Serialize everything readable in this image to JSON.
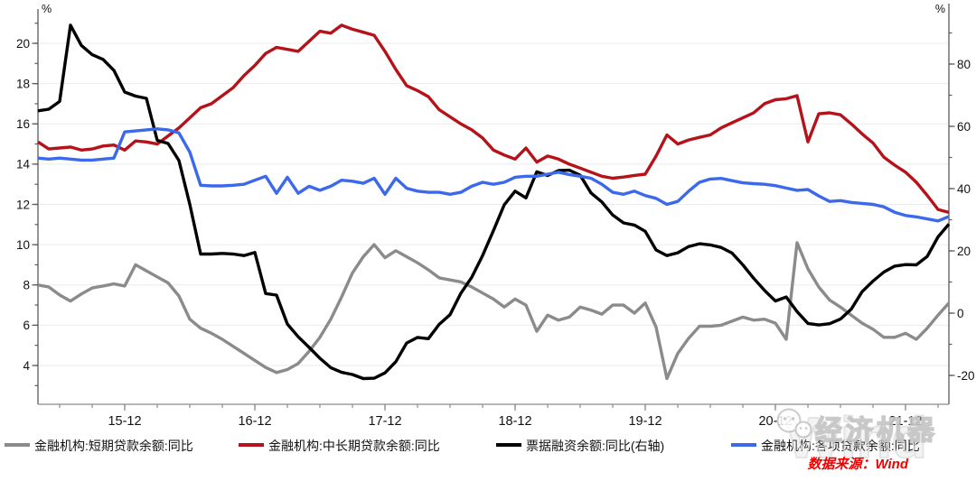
{
  "page": {
    "background": "#ffffff"
  },
  "chart_data": {
    "type": "line",
    "title": "",
    "grid": "horizontal",
    "legend_position": "bottom",
    "x_unit": "month",
    "x": [
      "15-04",
      "15-05",
      "15-06",
      "15-07",
      "15-08",
      "15-09",
      "15-10",
      "15-11",
      "15-12",
      "16-01",
      "16-02",
      "16-03",
      "16-04",
      "16-05",
      "16-06",
      "16-07",
      "16-08",
      "16-09",
      "16-10",
      "16-11",
      "16-12",
      "17-01",
      "17-02",
      "17-03",
      "17-04",
      "17-05",
      "17-06",
      "17-07",
      "17-08",
      "17-09",
      "17-10",
      "17-11",
      "17-12",
      "18-01",
      "18-02",
      "18-03",
      "18-04",
      "18-05",
      "18-06",
      "18-07",
      "18-08",
      "18-09",
      "18-10",
      "18-11",
      "18-12",
      "19-01",
      "19-02",
      "19-03",
      "19-04",
      "19-05",
      "19-06",
      "19-07",
      "19-08",
      "19-09",
      "19-10",
      "19-11",
      "19-12",
      "20-01",
      "20-02",
      "20-03",
      "20-04",
      "20-05",
      "20-06",
      "20-07",
      "20-08",
      "20-09",
      "20-10",
      "20-11",
      "20-12",
      "21-01",
      "21-02",
      "21-03",
      "21-04",
      "21-05",
      "21-06",
      "21-07",
      "21-08",
      "21-09",
      "21-10",
      "21-11",
      "21-12",
      "22-01",
      "22-02",
      "22-03",
      "22-04"
    ],
    "x_axis": {
      "tick_labels": [
        "15-12",
        "16-12",
        "17-12",
        "18-12",
        "19-12",
        "20-12",
        "21-12"
      ]
    },
    "left_axis": {
      "unit": "%",
      "ticks": [
        20,
        18,
        16,
        14,
        12,
        10,
        8,
        6,
        4
      ],
      "minor_step": 1
    },
    "right_axis": {
      "unit": "%",
      "ticks": [
        80,
        60,
        40,
        20,
        0,
        -20
      ],
      "minor_step": 10
    },
    "series": [
      {
        "name": "金融机构:短期贷款余额:同比",
        "axis": "left",
        "color": "#8b8b8b",
        "values": [
          8.0,
          7.9,
          7.5,
          7.2,
          7.55,
          7.85,
          7.95,
          8.05,
          7.95,
          9.0,
          8.7,
          8.4,
          8.1,
          7.45,
          6.3,
          5.85,
          5.6,
          5.3,
          4.95,
          4.6,
          4.25,
          3.9,
          3.65,
          3.8,
          4.1,
          4.7,
          5.4,
          6.3,
          7.4,
          8.6,
          9.4,
          10.0,
          9.35,
          9.7,
          9.4,
          9.1,
          8.75,
          8.35,
          8.25,
          8.15,
          7.9,
          7.6,
          7.3,
          6.9,
          7.3,
          7.0,
          5.7,
          6.5,
          6.25,
          6.4,
          6.9,
          6.75,
          6.55,
          7.0,
          7.0,
          6.6,
          7.1,
          5.9,
          3.35,
          4.6,
          5.35,
          5.95,
          5.95,
          6.0,
          6.2,
          6.4,
          6.25,
          6.3,
          6.1,
          5.3,
          10.1,
          8.8,
          7.9,
          7.25,
          6.9,
          6.5,
          6.1,
          5.8,
          5.4,
          5.4,
          5.6,
          5.3,
          5.85,
          6.5,
          7.1
        ]
      },
      {
        "name": "金融机构:中长期贷款余额:同比",
        "axis": "left",
        "color": "#b5121a",
        "values": [
          15.1,
          14.75,
          14.8,
          14.85,
          14.7,
          14.75,
          14.9,
          14.95,
          14.7,
          15.15,
          15.1,
          15.0,
          15.4,
          15.8,
          16.3,
          16.8,
          17.0,
          17.4,
          17.8,
          18.4,
          18.9,
          19.5,
          19.8,
          19.7,
          19.6,
          20.1,
          20.6,
          20.5,
          20.9,
          20.7,
          20.55,
          20.4,
          19.6,
          18.7,
          17.9,
          17.65,
          17.35,
          16.7,
          16.35,
          16.0,
          15.7,
          15.3,
          14.7,
          14.45,
          14.25,
          14.8,
          14.1,
          14.4,
          14.25,
          14.0,
          13.8,
          13.6,
          13.4,
          13.3,
          13.36,
          13.44,
          13.5,
          14.4,
          15.45,
          15.0,
          15.2,
          15.33,
          15.45,
          15.8,
          16.05,
          16.3,
          16.55,
          17.0,
          17.2,
          17.25,
          17.4,
          15.1,
          16.5,
          16.55,
          16.45,
          16.0,
          15.5,
          15.05,
          14.35,
          13.95,
          13.6,
          13.1,
          12.45,
          11.75,
          11.6
        ]
      },
      {
        "name": "票据融资余额:同比(右轴)",
        "axis": "right",
        "color": "#000000",
        "values": [
          65,
          65.5,
          68,
          92.5,
          86,
          83,
          81.5,
          78,
          71,
          69.7,
          69,
          55.5,
          54.5,
          49,
          35,
          19,
          19,
          19.2,
          19,
          18.5,
          19.5,
          6.3,
          5.8,
          -3.5,
          -7.6,
          -11,
          -14.5,
          -17.5,
          -19,
          -19.7,
          -21,
          -20.9,
          -19.2,
          -15.6,
          -9.6,
          -7.8,
          -8.2,
          -3.6,
          -0.5,
          6.4,
          11.5,
          18.5,
          26.5,
          34.8,
          39.2,
          37.0,
          45.4,
          44.2,
          45.8,
          45.9,
          44.3,
          38.6,
          35.7,
          31.5,
          29.0,
          28.3,
          26.3,
          20.3,
          18.5,
          19.4,
          21.4,
          22.3,
          21.9,
          21.1,
          19.3,
          15.5,
          11.2,
          7.3,
          3.9,
          5.2,
          0.5,
          -3.3,
          -3.8,
          -3.4,
          -1.9,
          1.3,
          6.9,
          10.3,
          13.2,
          15.1,
          15.6,
          15.5,
          18.2,
          24.5,
          28.6
        ]
      },
      {
        "name": "金融机构:各项贷款余额:同比",
        "axis": "left",
        "color": "#3c69eb",
        "values": [
          14.3,
          14.25,
          14.3,
          14.25,
          14.2,
          14.2,
          14.25,
          14.3,
          15.6,
          15.65,
          15.7,
          15.75,
          15.7,
          15.55,
          14.6,
          12.95,
          12.92,
          12.92,
          12.95,
          13.0,
          13.2,
          13.4,
          12.55,
          13.35,
          12.55,
          12.9,
          12.7,
          12.9,
          13.2,
          13.15,
          13.05,
          13.3,
          12.5,
          13.3,
          12.8,
          12.66,
          12.6,
          12.6,
          12.5,
          12.6,
          12.9,
          13.1,
          13.0,
          13.1,
          13.35,
          13.4,
          13.4,
          13.5,
          13.6,
          13.48,
          13.4,
          13.3,
          13.0,
          12.6,
          12.5,
          12.66,
          12.44,
          12.3,
          12.0,
          12.15,
          12.66,
          13.1,
          13.26,
          13.29,
          13.18,
          13.07,
          13.03,
          13.0,
          12.93,
          12.81,
          12.7,
          12.74,
          12.42,
          12.15,
          12.19,
          12.1,
          12.05,
          12.0,
          11.88,
          11.61,
          11.45,
          11.38,
          11.28,
          11.18,
          11.4
        ]
      }
    ]
  },
  "legend": {
    "items": [
      {
        "label": "金融机构:短期贷款余额:同比",
        "color": "#8b8b8b"
      },
      {
        "label": "金融机构:中长期贷款余额:同比",
        "color": "#b5121a"
      },
      {
        "label": "票据融资余额:同比(右轴)",
        "color": "#000000"
      },
      {
        "label": "金融机构:各项贷款余额:同比",
        "color": "#3c69eb"
      }
    ]
  },
  "source": {
    "text": "数据来源：Wind",
    "color": "#f20000"
  },
  "watermark": {
    "brand": "经济机器",
    "big_text": "Wind"
  }
}
